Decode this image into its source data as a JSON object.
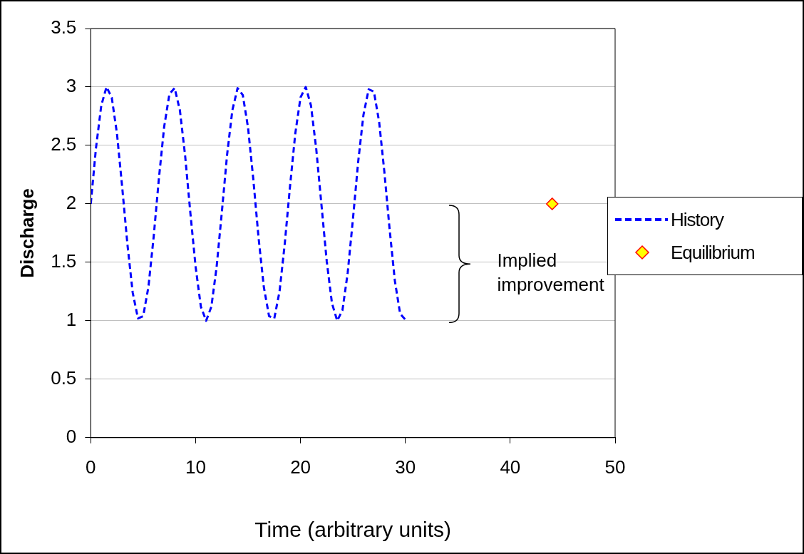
{
  "chart_data": {
    "type": "scatter",
    "xlabel": "Time (arbitrary units)",
    "ylabel": "Discharge",
    "xlim": [
      0,
      50
    ],
    "xticks": [
      0,
      10,
      20,
      30,
      40,
      50
    ],
    "ylim": [
      0,
      3.5
    ],
    "yticks": [
      0,
      0.5,
      1,
      1.5,
      2,
      2.5,
      3,
      3.5
    ],
    "grid": "y",
    "legend": "right",
    "annotations": [
      "Implied improvement"
    ],
    "series": [
      {
        "name": "History",
        "type": "line",
        "color": "#0000ff",
        "line_style": "dashed",
        "marker": "none",
        "x": [
          0,
          0.5,
          1,
          1.5,
          2,
          2.5,
          3,
          3.5,
          4,
          4.5,
          5,
          5.5,
          6,
          6.5,
          7,
          7.5,
          8,
          8.5,
          9,
          9.5,
          10,
          10.5,
          11,
          11.5,
          12,
          12.5,
          13,
          13.5,
          14,
          14.5,
          15,
          15.5,
          16,
          16.5,
          17,
          17.5,
          18,
          18.5,
          19,
          19.5,
          20,
          20.5,
          21,
          21.5,
          22,
          22.5,
          23,
          23.5,
          24,
          24.5,
          25,
          25.5,
          26,
          26.5,
          27,
          27.5,
          28,
          28.5,
          29,
          29.5,
          30
        ],
        "values": [
          2,
          2.48,
          2.84,
          3,
          2.91,
          2.6,
          2.14,
          1.65,
          1.24,
          1.02,
          1.04,
          1.29,
          1.72,
          2.22,
          2.66,
          2.94,
          2.99,
          2.8,
          2.41,
          1.92,
          1.46,
          1.12,
          1,
          1.12,
          1.46,
          1.93,
          2.42,
          2.8,
          2.99,
          2.93,
          2.65,
          2.21,
          1.71,
          1.29,
          1.04,
          1.02,
          1.25,
          1.66,
          2.15,
          2.6,
          2.91,
          3,
          2.84,
          2.47,
          1.99,
          1.51,
          1.15,
          1,
          1.09,
          1.41,
          1.87,
          2.36,
          2.76,
          2.98,
          2.96,
          2.7,
          2.27,
          1.78,
          1.34,
          1.06,
          1.01
        ]
      },
      {
        "name": "Equilibrium",
        "type": "scatter",
        "color": "#ffff00",
        "marker": "diamond",
        "x": [
          44
        ],
        "values": [
          2
        ]
      }
    ]
  }
}
